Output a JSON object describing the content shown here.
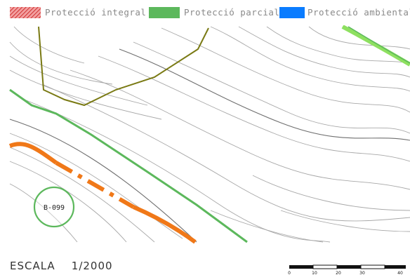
{
  "legend": {
    "items": [
      {
        "label": "Protecció integral",
        "color": "#e04848",
        "pattern": "hatched"
      },
      {
        "label": "Protecció parcial",
        "color": "#5cb85c",
        "pattern": "solid"
      },
      {
        "label": "Protecció ambiental",
        "color": "#0a7cff",
        "pattern": "solid"
      }
    ]
  },
  "map": {
    "marker_label": "B-099",
    "colors": {
      "contour": "#a8a8a8",
      "contour_dark": "#6f6f6f",
      "olive_path": "#7a7a14",
      "green_line": "#5cb85c",
      "light_green": "#8ee060",
      "orange_path": "#f07818",
      "marker_circle": "#5cb85c"
    }
  },
  "scale": {
    "label": "ESCALA",
    "value": "1/2000",
    "ticks": [
      "0",
      "10",
      "20",
      "30",
      "40"
    ]
  }
}
